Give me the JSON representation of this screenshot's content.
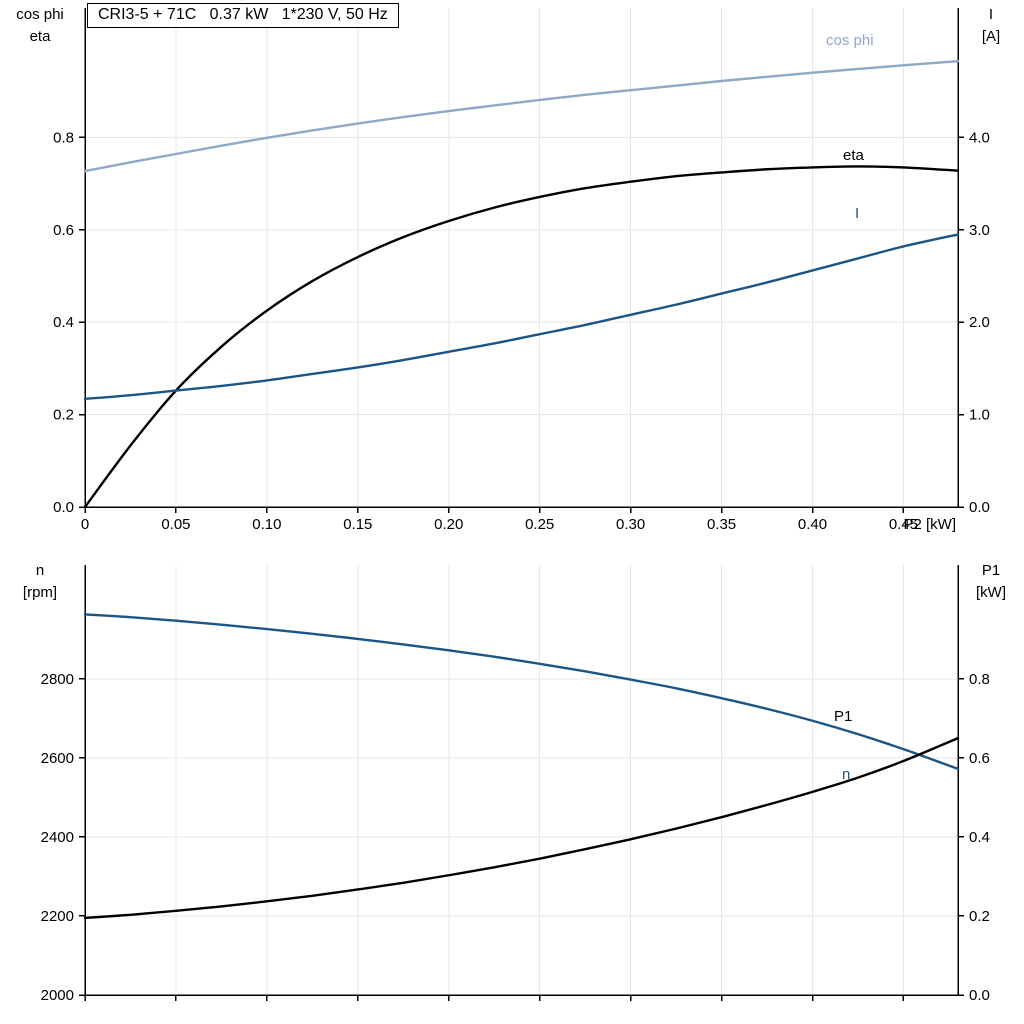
{
  "title_box": "CRI3-5 + 71C   0.37 kW   1*230 V, 50 Hz",
  "labels": {
    "top_left_line1": "cos phi",
    "top_left_line2": "eta",
    "top_right_line1": "I",
    "top_right_line2": "[A]",
    "bottom_left_line1": "n",
    "bottom_left_line2": "[rpm]",
    "bottom_right_line1": "P1",
    "bottom_right_line2": "[kW]"
  },
  "colors": {
    "cos_phi_curve": "#8fa8c6",
    "current_curve": "#1b5586",
    "black_curve": "#000000",
    "axis": "#000000",
    "grid": "#e7e7e7"
  },
  "chart_data": [
    {
      "type": "line",
      "name": "motor-efficiency-current-chart",
      "title": "CRI3-5 + 71C   0.37 kW   1*230 V, 50 Hz",
      "xlabel": "P2 [kW]",
      "x_range": [
        0,
        0.48
      ],
      "x_tick_values": [
        0,
        0.05,
        0.1,
        0.15,
        0.2,
        0.25,
        0.3,
        0.35,
        0.4,
        0.45
      ],
      "x_tick_labels": [
        "0",
        "0.05",
        "0.10",
        "0.15",
        "0.20",
        "0.25",
        "0.30",
        "0.35",
        "0.40",
        "0.45"
      ],
      "left_axis": {
        "label": "cos phi / eta",
        "range": [
          0,
          1.08
        ],
        "ticks": [
          0,
          0.2,
          0.4,
          0.6,
          0.8
        ],
        "tick_labels": [
          "0.0",
          "0.2",
          "0.4",
          "0.6",
          "0.8"
        ]
      },
      "right_axis": {
        "label": "I [A]",
        "range": [
          0,
          5.4
        ],
        "ticks": [
          0,
          1,
          2,
          3,
          4
        ],
        "tick_labels": [
          "0.0",
          "1.0",
          "2.0",
          "3.0",
          "4.0"
        ]
      },
      "grid": true,
      "legend_position": "inline-labels",
      "x": [
        0,
        0.025,
        0.05,
        0.075,
        0.1,
        0.125,
        0.15,
        0.175,
        0.2,
        0.225,
        0.25,
        0.275,
        0.3,
        0.325,
        0.35,
        0.375,
        0.4,
        0.425,
        0.45,
        0.48
      ],
      "series": [
        {
          "name": "cos phi",
          "axis": "left",
          "color": "#8fa8c6",
          "values": [
            0.727,
            0.746,
            0.764,
            0.782,
            0.799,
            0.815,
            0.83,
            0.844,
            0.857,
            0.869,
            0.881,
            0.892,
            0.902,
            0.912,
            0.922,
            0.931,
            0.94,
            0.948,
            0.956,
            0.965
          ]
        },
        {
          "name": "eta",
          "axis": "left",
          "color": "#000000",
          "values": [
            0.0,
            0.133,
            0.252,
            0.347,
            0.425,
            0.489,
            0.541,
            0.584,
            0.619,
            0.648,
            0.671,
            0.69,
            0.704,
            0.716,
            0.724,
            0.731,
            0.735,
            0.737,
            0.735,
            0.728
          ]
        },
        {
          "name": "I",
          "axis": "right",
          "color": "#1b5586",
          "values": [
            1.17,
            1.21,
            1.26,
            1.31,
            1.37,
            1.44,
            1.51,
            1.59,
            1.68,
            1.77,
            1.87,
            1.97,
            2.08,
            2.19,
            2.31,
            2.43,
            2.56,
            2.69,
            2.82,
            2.95
          ]
        }
      ]
    },
    {
      "type": "line",
      "name": "speed-power-chart",
      "title": "",
      "xlabel": "",
      "x_range": [
        0,
        0.48
      ],
      "x_tick_values": [
        0,
        0.05,
        0.1,
        0.15,
        0.2,
        0.25,
        0.3,
        0.35,
        0.4,
        0.45
      ],
      "x_tick_labels": [],
      "left_axis": {
        "label": "n [rpm]",
        "range": [
          2000,
          3088
        ],
        "ticks": [
          2000,
          2200,
          2400,
          2600,
          2800
        ],
        "tick_labels": [
          "2000",
          "2200",
          "2400",
          "2600",
          "2800"
        ]
      },
      "right_axis": {
        "label": "P1 [kW]",
        "range": [
          0,
          1.088
        ],
        "ticks": [
          0,
          0.2,
          0.4,
          0.6,
          0.8
        ],
        "tick_labels": [
          "0.0",
          "0.2",
          "0.4",
          "0.6",
          "0.8"
        ]
      },
      "grid": true,
      "legend_position": "inline-labels",
      "x": [
        0,
        0.025,
        0.05,
        0.075,
        0.1,
        0.125,
        0.15,
        0.175,
        0.2,
        0.225,
        0.25,
        0.275,
        0.3,
        0.325,
        0.35,
        0.375,
        0.4,
        0.425,
        0.45,
        0.48
      ],
      "series": [
        {
          "name": "n",
          "axis": "left",
          "color": "#1b5586",
          "values": [
            2963,
            2956,
            2947,
            2937,
            2926,
            2914,
            2901,
            2887,
            2872,
            2856,
            2838,
            2819,
            2798,
            2776,
            2751,
            2724,
            2694,
            2660,
            2622,
            2572
          ]
        },
        {
          "name": "P1",
          "axis": "right",
          "color": "#000000",
          "values": [
            0.195,
            0.203,
            0.213,
            0.224,
            0.237,
            0.251,
            0.267,
            0.284,
            0.303,
            0.323,
            0.345,
            0.369,
            0.394,
            0.421,
            0.45,
            0.481,
            0.514,
            0.55,
            0.592,
            0.65
          ]
        }
      ]
    }
  ]
}
